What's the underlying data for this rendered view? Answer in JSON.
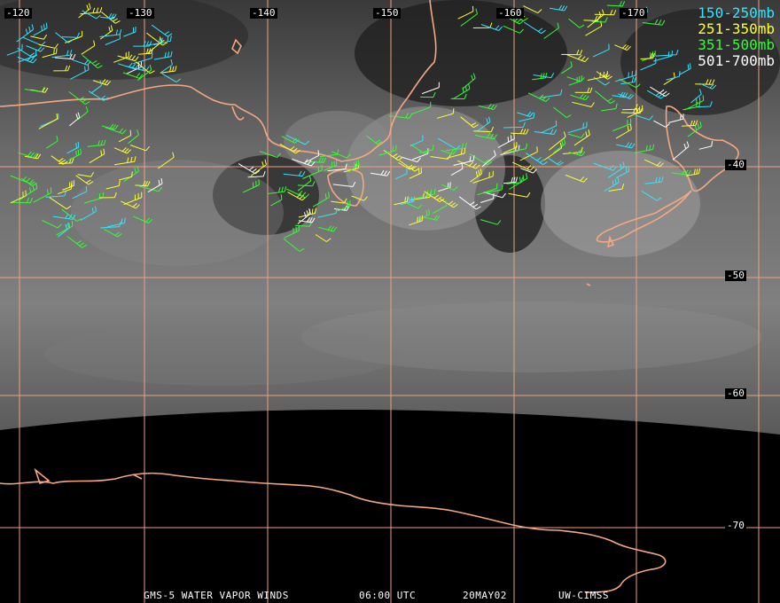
{
  "lon_labels": [
    "-120",
    "-130",
    "-140",
    "-150",
    "-160",
    "-170"
  ],
  "lat_labels": [
    "-40",
    "-50",
    "-60",
    "-70"
  ],
  "legend": [
    {
      "label": "150-250mb",
      "color": "#33e5ff"
    },
    {
      "label": "251-350mb",
      "color": "#ffff33"
    },
    {
      "label": "351-500mb",
      "color": "#33ff33"
    },
    {
      "label": "501-700mb",
      "color": "#ffffff"
    }
  ],
  "footer": {
    "product": "GMS-5 WATER VAPOR WINDS",
    "time": "06:00 UTC",
    "date": "20MAY02",
    "source": "UW-CIMSS"
  },
  "colors": {
    "grid": "#f0a080",
    "coast": "#f4a882",
    "space": "#000000"
  }
}
